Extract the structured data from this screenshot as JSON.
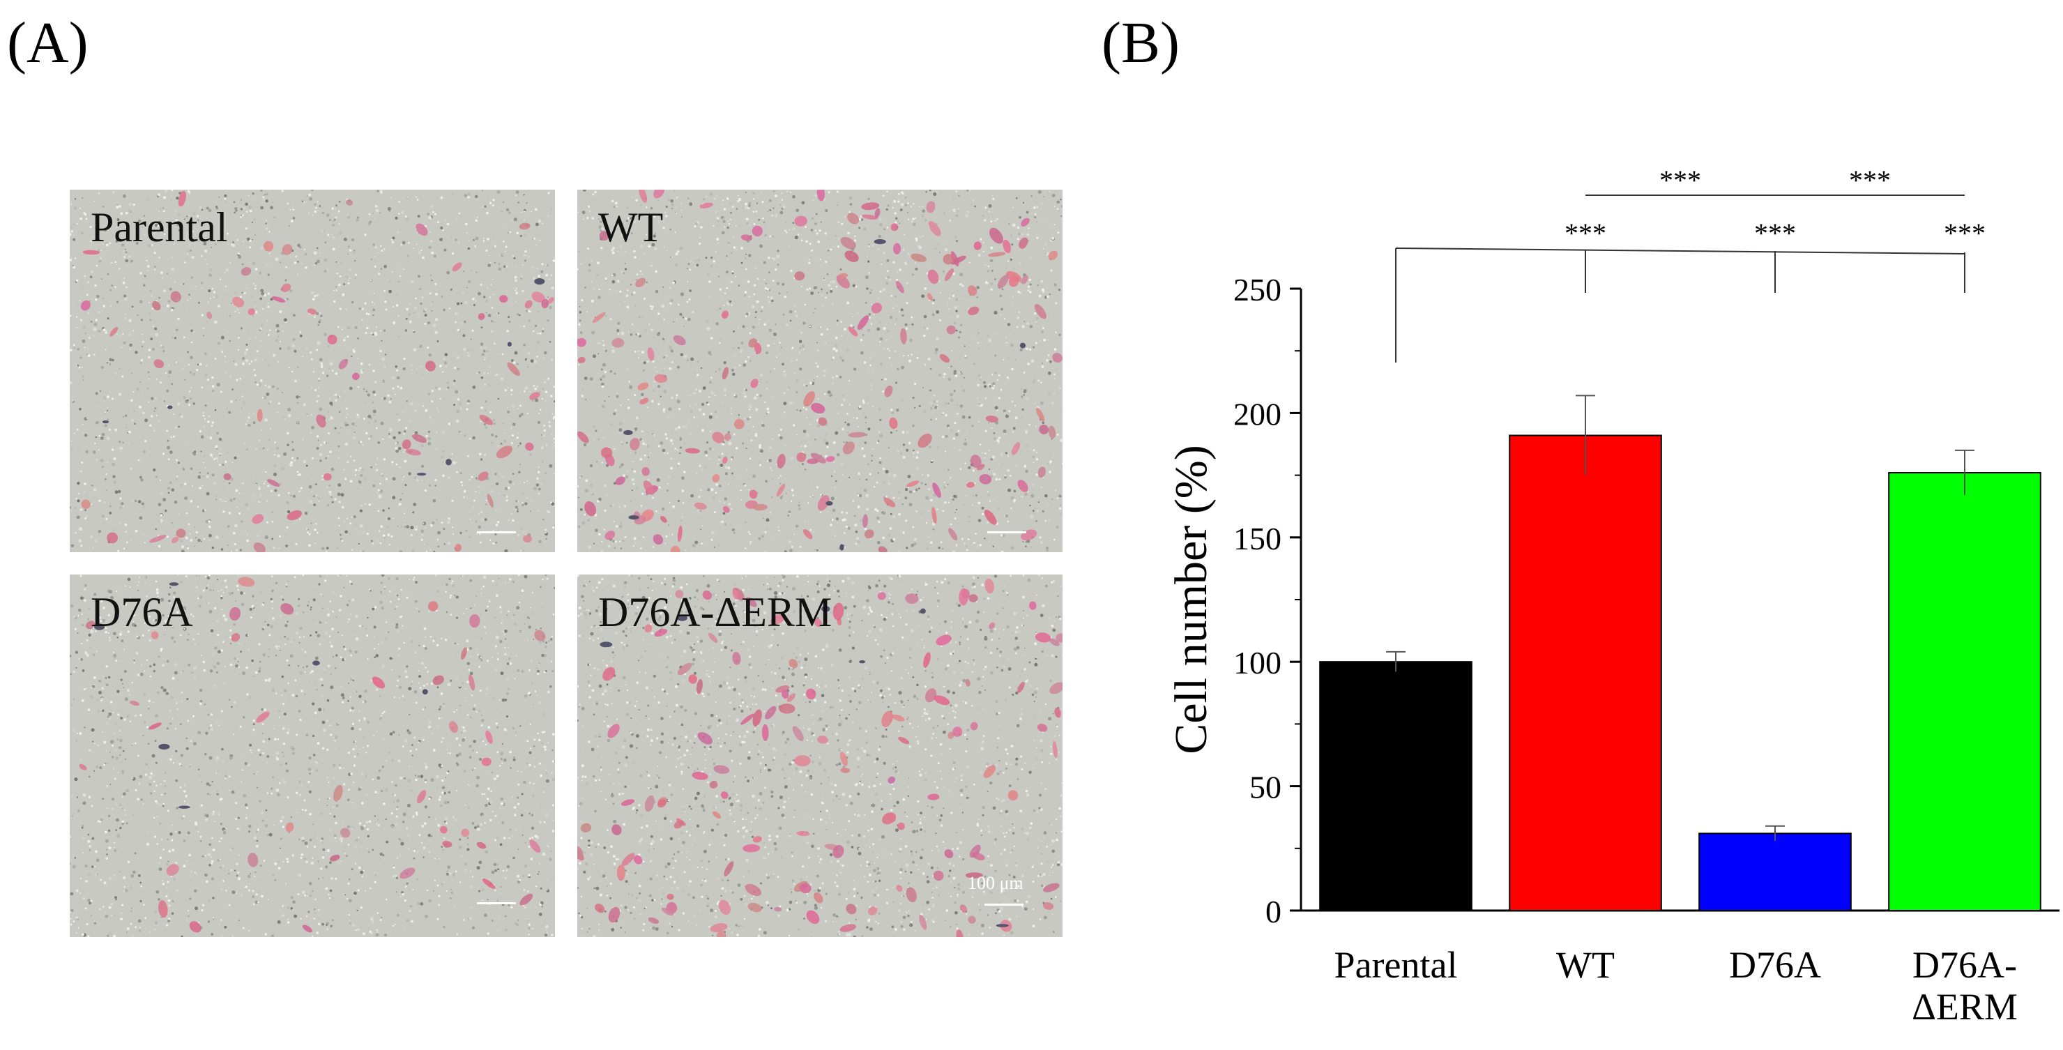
{
  "panels": {
    "a_label": "(A)",
    "b_label": "(B)"
  },
  "micrographs": [
    {
      "label": "Parental"
    },
    {
      "label": "WT"
    },
    {
      "label": "D76A"
    },
    {
      "label": "D76A-ΔERM",
      "scale_text": "100 μm"
    }
  ],
  "chart_data": {
    "type": "bar",
    "categories": [
      "Parental",
      "WT",
      "D76A",
      "D76A-ΔERM"
    ],
    "category_lines": [
      [
        "Parental"
      ],
      [
        "WT"
      ],
      [
        "D76A"
      ],
      [
        "D76A-",
        "ΔERM"
      ]
    ],
    "values": [
      100,
      191,
      31,
      176
    ],
    "errors": [
      4,
      16,
      3,
      9
    ],
    "colors": [
      "#000000",
      "#ff0000",
      "#0000ff",
      "#00ff00"
    ],
    "ylabel": "Cell number (%)",
    "xlabel": "",
    "ylim": [
      0,
      250
    ],
    "yticks": [
      0,
      50,
      100,
      150,
      200,
      250
    ],
    "grid": false,
    "significance": {
      "bracket_from": "Parental",
      "to": [
        {
          "category": "WT",
          "label": "***"
        },
        {
          "category": "D76A",
          "label": "***"
        },
        {
          "category": "D76A-ΔERM",
          "label": "***"
        }
      ],
      "pairs": [
        {
          "from": "WT",
          "to": "D76A",
          "label": "***"
        },
        {
          "from": "D76A",
          "to": "D76A-ΔERM",
          "label": "***"
        }
      ]
    }
  }
}
